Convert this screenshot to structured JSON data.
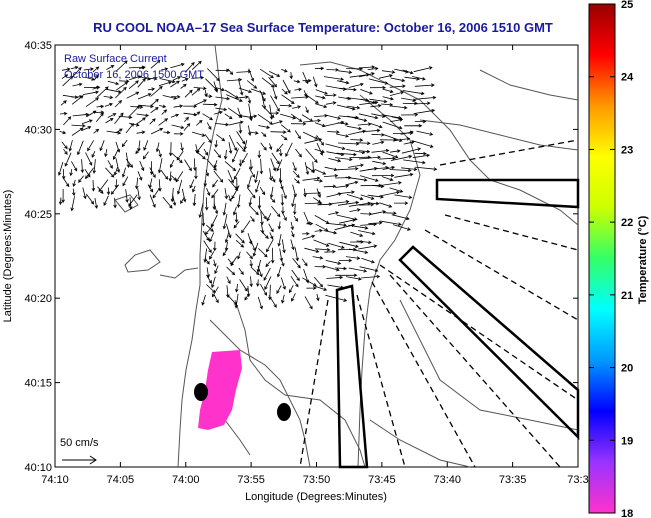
{
  "chart_data": {
    "type": "map",
    "title": "RU COOL  NOAA–17  Sea Surface Temperature:  October 16, 2006 1510 GMT",
    "xlabel": "Longitude (Degrees:Minutes)",
    "ylabel": "Latitude (Degrees:Minutes)",
    "x_ticks": [
      "74:10",
      "74:05",
      "74:00",
      "73:55",
      "73:50",
      "73:45",
      "73:40",
      "73:35",
      "73:3"
    ],
    "y_ticks": [
      "40:35",
      "40:30",
      "40:25",
      "40:20",
      "40:15",
      "40:10"
    ],
    "overlay_label_1": "Raw Surface Current",
    "overlay_label_2": "October 16, 2006 1500 GMT",
    "scale_label": "50 cm/s",
    "colorbar": {
      "label": "Temperature (°C)",
      "ticks": [
        "25",
        "24",
        "23",
        "22",
        "21",
        "20",
        "19",
        "18"
      ],
      "range": [
        18,
        25
      ],
      "colors": [
        "#ff33cc",
        "#9933ff",
        "#0000ff",
        "#0099ff",
        "#00ffff",
        "#33ff66",
        "#ccff00",
        "#ffff00",
        "#ff9900",
        "#ff0000",
        "#990000"
      ]
    }
  }
}
